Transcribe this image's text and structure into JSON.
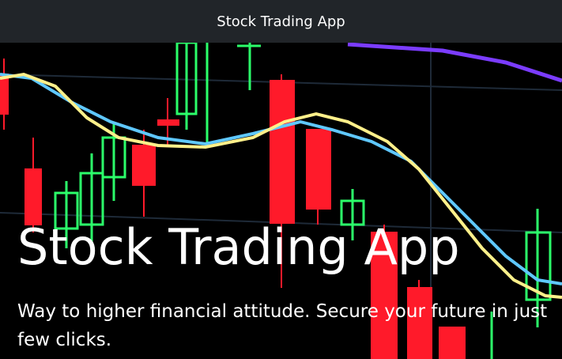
{
  "navbar": {
    "title": "Stock Trading App"
  },
  "hero": {
    "background": "candlestick-chart-photo",
    "title": "Stock Trading App",
    "subtitle": "Way to higher financial attitude. Secure your future in just few clicks."
  },
  "colors": {
    "navbar_bg": "#212529",
    "bull_candle": "#2bff6a",
    "bear_candle": "#ff1a2a",
    "line_blue": "#5fc8ff",
    "line_yellow": "#fff08a",
    "line_purple": "#7b3cff"
  }
}
